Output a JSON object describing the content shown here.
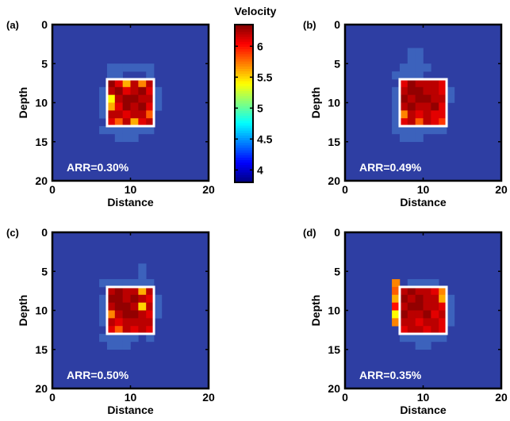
{
  "chart_data": [
    {
      "panel": "(a)",
      "type": "heatmap",
      "annotation": "ARR=0.30%",
      "xlabel": "Distance",
      "ylabel": "Depth",
      "xlim": [
        0,
        20
      ],
      "ylim": [
        20,
        0
      ],
      "xticks": [
        "0",
        "10",
        "20"
      ],
      "yticks": [
        "0",
        "5",
        "10",
        "15",
        "20"
      ],
      "anomaly_box": {
        "x": [
          7,
          13
        ],
        "depth": [
          7,
          13
        ]
      },
      "anomaly_values": [
        [
          6.3,
          6.1,
          5.6,
          6.2,
          5.7,
          6.2
        ],
        [
          6.2,
          6.3,
          6.1,
          6.2,
          6.3,
          6.1
        ],
        [
          5.4,
          6.2,
          6.3,
          6.3,
          6.2,
          6.2
        ],
        [
          5.6,
          6.1,
          6.3,
          6.2,
          6.3,
          6.1
        ],
        [
          6.2,
          6.2,
          6.1,
          6.2,
          6.2,
          5.8
        ],
        [
          6.1,
          5.8,
          6.2,
          5.6,
          6.1,
          6.2
        ]
      ],
      "halo_cells": [
        [
          7,
          5
        ],
        [
          8,
          5
        ],
        [
          9,
          5
        ],
        [
          10,
          5
        ],
        [
          11,
          5
        ],
        [
          12,
          5
        ],
        [
          7,
          6
        ],
        [
          8,
          6
        ],
        [
          12,
          6
        ],
        [
          6,
          8
        ],
        [
          6,
          9
        ],
        [
          6,
          10
        ],
        [
          6,
          11
        ],
        [
          13,
          8
        ],
        [
          13,
          9
        ],
        [
          13,
          10
        ],
        [
          6,
          13
        ],
        [
          7,
          13
        ],
        [
          8,
          13
        ],
        [
          9,
          13
        ],
        [
          10,
          13
        ],
        [
          11,
          13
        ],
        [
          12,
          13
        ],
        [
          8,
          14
        ],
        [
          9,
          14
        ],
        [
          10,
          14
        ]
      ]
    },
    {
      "panel": "(b)",
      "type": "heatmap",
      "annotation": "ARR=0.49%",
      "xlabel": "Distance",
      "ylabel": "Depth",
      "xlim": [
        0,
        20
      ],
      "ylim": [
        20,
        0
      ],
      "xticks": [
        "0",
        "10",
        "20"
      ],
      "yticks": [
        "0",
        "5",
        "10",
        "15",
        "20"
      ],
      "anomaly_box": {
        "x": [
          7,
          13
        ],
        "depth": [
          7,
          13
        ]
      },
      "anomaly_values": [
        [
          6.1,
          6.3,
          6.2,
          6.2,
          6.2,
          6.1
        ],
        [
          6.2,
          6.3,
          6.3,
          6.2,
          6.2,
          6.1
        ],
        [
          6.3,
          6.2,
          6.3,
          6.3,
          6.2,
          6.2
        ],
        [
          6.2,
          6.3,
          6.2,
          6.2,
          6.3,
          6.1
        ],
        [
          5.7,
          6.2,
          6.1,
          6.2,
          6.1,
          6.1
        ],
        [
          6.1,
          6.2,
          5.8,
          6.2,
          6.1,
          5.9
        ]
      ],
      "halo_cells": [
        [
          8,
          3
        ],
        [
          9,
          3
        ],
        [
          8,
          4
        ],
        [
          9,
          4
        ],
        [
          7,
          5
        ],
        [
          8,
          5
        ],
        [
          9,
          5
        ],
        [
          10,
          5
        ],
        [
          6,
          6
        ],
        [
          7,
          6
        ],
        [
          8,
          6
        ],
        [
          9,
          6
        ],
        [
          6,
          8
        ],
        [
          6,
          9
        ],
        [
          6,
          10
        ],
        [
          6,
          11
        ],
        [
          6,
          12
        ],
        [
          13,
          8
        ],
        [
          13,
          9
        ],
        [
          6,
          13
        ],
        [
          7,
          13
        ],
        [
          8,
          13
        ],
        [
          9,
          13
        ],
        [
          10,
          13
        ],
        [
          11,
          13
        ],
        [
          12,
          13
        ],
        [
          7,
          14
        ],
        [
          8,
          14
        ],
        [
          9,
          14
        ]
      ]
    },
    {
      "panel": "(c)",
      "type": "heatmap",
      "annotation": "ARR=0.50%",
      "xlabel": "Distance",
      "ylabel": "Depth",
      "xlim": [
        0,
        20
      ],
      "ylim": [
        20,
        0
      ],
      "xticks": [
        "0",
        "10",
        "20"
      ],
      "yticks": [
        "0",
        "5",
        "10",
        "15",
        "20"
      ],
      "anomaly_box": {
        "x": [
          7,
          13
        ],
        "depth": [
          7,
          13
        ]
      },
      "anomaly_values": [
        [
          6.2,
          6.3,
          6.2,
          6.2,
          5.6,
          6.2
        ],
        [
          6.3,
          6.3,
          6.2,
          6.3,
          6.2,
          6.1
        ],
        [
          6.2,
          6.3,
          6.3,
          6.2,
          5.5,
          6.2
        ],
        [
          5.7,
          6.2,
          6.3,
          6.3,
          6.2,
          6.1
        ],
        [
          6.2,
          6.1,
          6.2,
          6.2,
          6.2,
          6.2
        ],
        [
          6.1,
          5.8,
          6.2,
          6.1,
          6.2,
          6.1
        ]
      ],
      "halo_cells": [
        [
          11,
          4
        ],
        [
          11,
          5
        ],
        [
          11,
          6
        ],
        [
          6,
          6
        ],
        [
          7,
          6
        ],
        [
          8,
          6
        ],
        [
          9,
          6
        ],
        [
          10,
          6
        ],
        [
          12,
          6
        ],
        [
          6,
          8
        ],
        [
          6,
          9
        ],
        [
          6,
          10
        ],
        [
          6,
          11
        ],
        [
          13,
          8
        ],
        [
          13,
          9
        ],
        [
          13,
          10
        ],
        [
          6,
          13
        ],
        [
          7,
          13
        ],
        [
          8,
          13
        ],
        [
          9,
          13
        ],
        [
          10,
          13
        ],
        [
          12,
          13
        ],
        [
          7,
          14
        ],
        [
          8,
          14
        ],
        [
          9,
          14
        ]
      ]
    },
    {
      "panel": "(d)",
      "type": "heatmap",
      "annotation": "ARR=0.35%",
      "xlabel": "Distance",
      "ylabel": "Depth",
      "xlim": [
        0,
        20
      ],
      "ylim": [
        20,
        0
      ],
      "xticks": [
        "0",
        "10",
        "20"
      ],
      "yticks": [
        "0",
        "5",
        "10",
        "15",
        "20"
      ],
      "anomaly_box": {
        "x": [
          7,
          13
        ],
        "depth": [
          7,
          13
        ]
      },
      "anomaly_values": [
        [
          6.2,
          6.3,
          6.2,
          6.2,
          6.1,
          5.7
        ],
        [
          6.3,
          6.2,
          6.3,
          6.2,
          6.2,
          5.6
        ],
        [
          6.2,
          6.3,
          6.3,
          6.2,
          6.2,
          6.1
        ],
        [
          6.3,
          6.2,
          6.2,
          6.3,
          6.1,
          6.2
        ],
        [
          6.2,
          6.2,
          6.1,
          6.2,
          6.2,
          6.1
        ],
        [
          6.1,
          6.2,
          6.2,
          6.1,
          6.2,
          6.1
        ]
      ],
      "halo_cells": [
        [
          8,
          6
        ],
        [
          9,
          6
        ],
        [
          10,
          6
        ],
        [
          11,
          6
        ],
        [
          13,
          8
        ],
        [
          13,
          9
        ],
        [
          13,
          10
        ],
        [
          13,
          11
        ],
        [
          7,
          13
        ],
        [
          8,
          13
        ],
        [
          9,
          13
        ],
        [
          10,
          13
        ],
        [
          11,
          13
        ],
        [
          12,
          13
        ],
        [
          9,
          14
        ],
        [
          10,
          14
        ]
      ],
      "left_streak": [
        [
          6,
          6,
          5.7
        ],
        [
          6,
          7,
          5.8
        ],
        [
          6,
          8,
          5.6
        ],
        [
          6,
          9,
          6.0
        ],
        [
          6,
          10,
          5.4
        ],
        [
          6,
          11,
          5.7
        ]
      ]
    }
  ],
  "colorbar": {
    "title": "Velocity",
    "ticks": [
      "6",
      "5.5",
      "5",
      "4.5",
      "4"
    ],
    "tick_values": [
      6,
      5.5,
      5,
      4.5,
      4
    ],
    "range": [
      3.8,
      6.35
    ],
    "colormap": "jet"
  },
  "colors": {
    "background": "#2e3ea3",
    "halo": "#3c62bc",
    "box": "#ffffff"
  }
}
